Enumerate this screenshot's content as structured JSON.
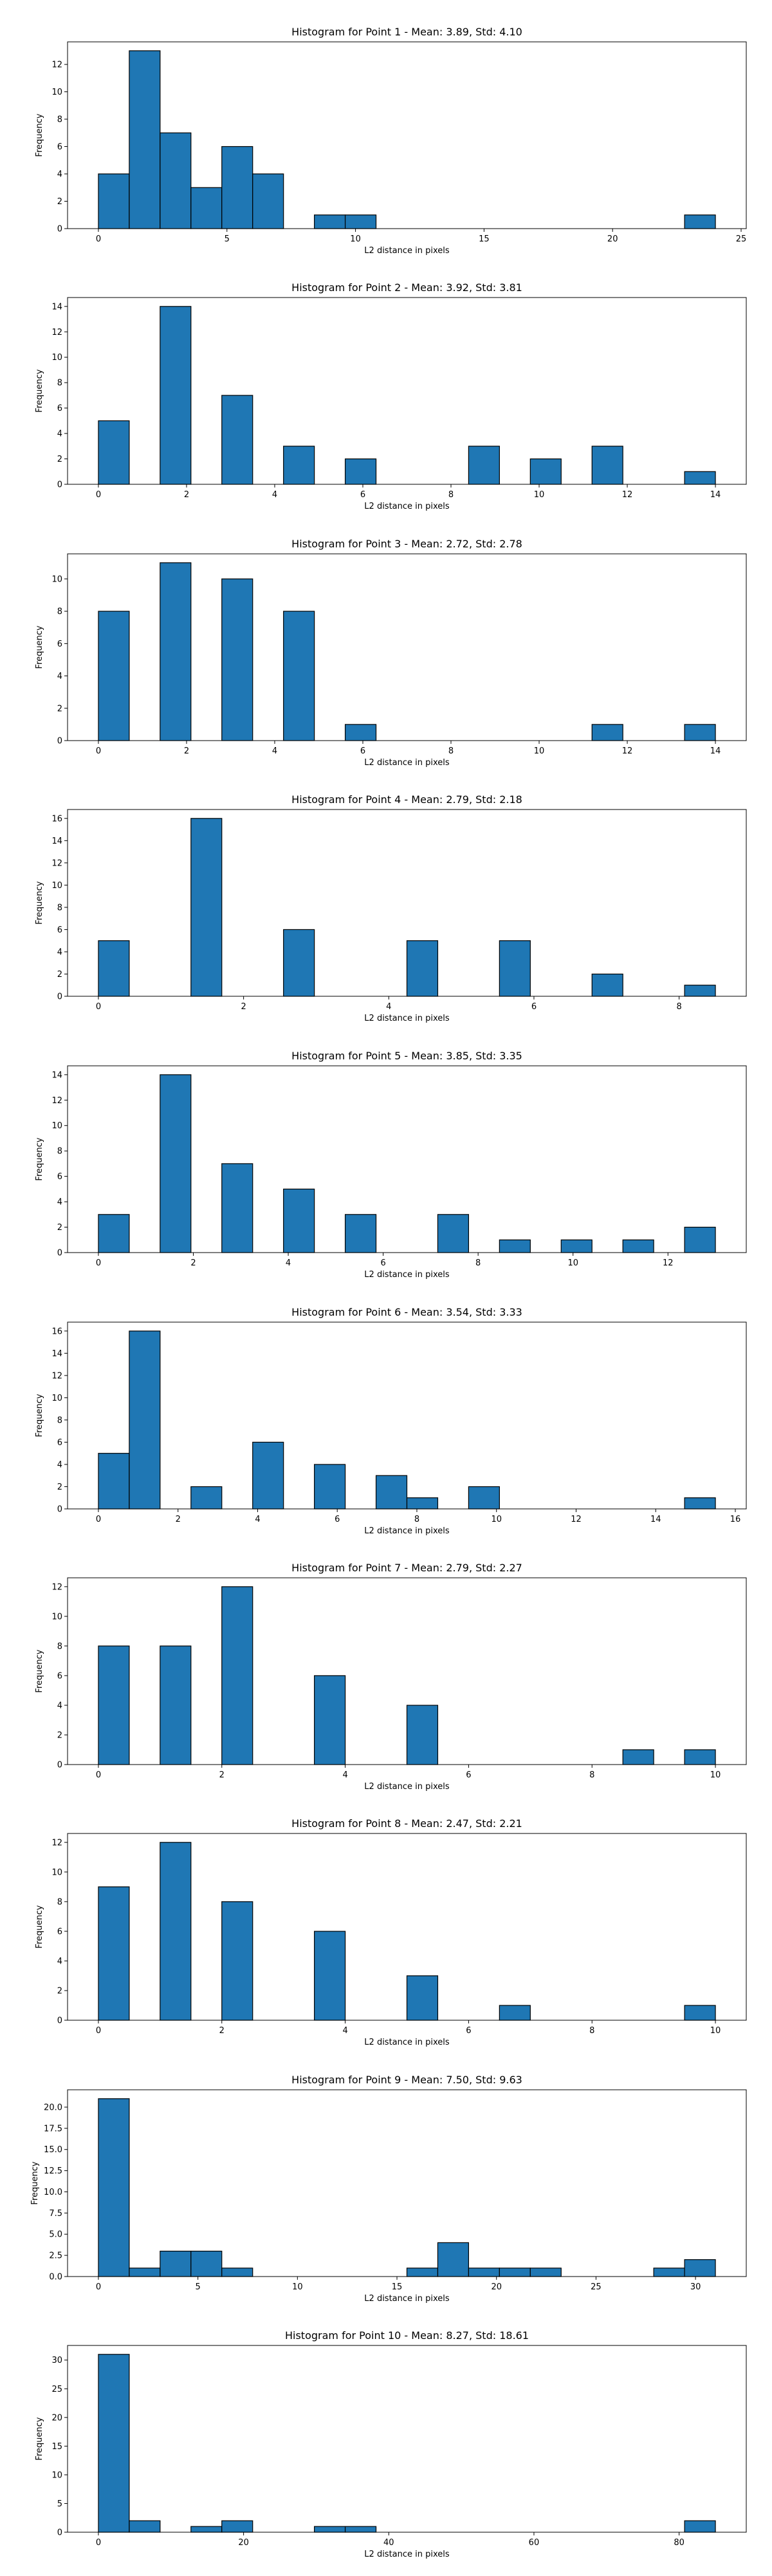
{
  "colors": {
    "bar_fill": "#1f77b4",
    "bar_edge": "#000000",
    "axes": "#000000",
    "background": "#ffffff"
  },
  "chart_data": [
    {
      "type": "bar",
      "title": "Histogram for Point 1 - Mean: 3.89, Std: 4.10",
      "xlabel": "L2 distance in pixels",
      "ylabel": "Frequency",
      "xlim": [
        -1.2,
        25.2
      ],
      "ylim": [
        0,
        13.65
      ],
      "xticks": [
        0,
        5,
        10,
        15,
        20,
        25
      ],
      "yticks": [
        0,
        2,
        4,
        6,
        8,
        10,
        12
      ],
      "bins": [
        [
          0.0,
          1.2,
          4
        ],
        [
          1.2,
          2.4,
          13
        ],
        [
          2.4,
          3.6,
          7
        ],
        [
          3.6,
          4.8,
          3
        ],
        [
          4.8,
          6.0,
          6
        ],
        [
          6.0,
          7.2,
          4
        ],
        [
          8.4,
          9.6,
          1
        ],
        [
          9.6,
          10.8,
          1
        ],
        [
          22.8,
          24.0,
          1
        ]
      ]
    },
    {
      "type": "bar",
      "title": "Histogram for Point 2 - Mean: 3.92, Std: 3.81",
      "xlabel": "L2 distance in pixels",
      "ylabel": "Frequency",
      "xlim": [
        -0.7,
        14.7
      ],
      "ylim": [
        0,
        14.7
      ],
      "xticks": [
        0,
        2,
        4,
        6,
        8,
        10,
        12,
        14
      ],
      "yticks": [
        0,
        2,
        4,
        6,
        8,
        10,
        12,
        14
      ],
      "bins": [
        [
          0.0,
          0.7,
          5
        ],
        [
          1.4,
          2.1,
          14
        ],
        [
          2.8,
          3.5,
          7
        ],
        [
          4.2,
          4.9,
          3
        ],
        [
          5.6,
          6.3,
          2
        ],
        [
          8.4,
          9.1,
          3
        ],
        [
          9.8,
          10.5,
          2
        ],
        [
          11.2,
          11.9,
          3
        ],
        [
          13.3,
          14.0,
          1
        ]
      ]
    },
    {
      "type": "bar",
      "title": "Histogram for Point 3 - Mean: 2.72, Std: 2.78",
      "xlabel": "L2 distance in pixels",
      "ylabel": "Frequency",
      "xlim": [
        -0.7,
        14.7
      ],
      "ylim": [
        0,
        11.55
      ],
      "xticks": [
        0,
        2,
        4,
        6,
        8,
        10,
        12,
        14
      ],
      "yticks": [
        0,
        2,
        4,
        6,
        8,
        10
      ],
      "bins": [
        [
          0.0,
          0.7,
          8
        ],
        [
          1.4,
          2.1,
          11
        ],
        [
          2.8,
          3.5,
          10
        ],
        [
          4.2,
          4.9,
          8
        ],
        [
          5.6,
          6.3,
          1
        ],
        [
          11.2,
          11.9,
          1
        ],
        [
          13.3,
          14.0,
          1
        ]
      ]
    },
    {
      "type": "bar",
      "title": "Histogram for Point 4 - Mean: 2.79, Std: 2.18",
      "xlabel": "L2 distance in pixels",
      "ylabel": "Frequency",
      "xlim": [
        -0.425,
        8.925
      ],
      "ylim": [
        0,
        16.8
      ],
      "xticks": [
        0,
        2,
        4,
        6,
        8
      ],
      "yticks": [
        0,
        2,
        4,
        6,
        8,
        10,
        12,
        14,
        16
      ],
      "bins": [
        [
          0.0,
          0.425,
          5
        ],
        [
          1.275,
          1.7,
          16
        ],
        [
          2.55,
          2.975,
          6
        ],
        [
          4.25,
          4.675,
          5
        ],
        [
          5.525,
          5.95,
          5
        ],
        [
          6.8,
          7.225,
          2
        ],
        [
          8.075,
          8.5,
          1
        ]
      ]
    },
    {
      "type": "bar",
      "title": "Histogram for Point 5 - Mean: 3.85, Std: 3.35",
      "xlabel": "L2 distance in pixels",
      "ylabel": "Frequency",
      "xlim": [
        -0.65,
        13.65
      ],
      "ylim": [
        0,
        14.7
      ],
      "xticks": [
        0,
        2,
        4,
        6,
        8,
        10,
        12
      ],
      "yticks": [
        0,
        2,
        4,
        6,
        8,
        10,
        12,
        14
      ],
      "bins": [
        [
          0.0,
          0.65,
          3
        ],
        [
          1.3,
          1.95,
          14
        ],
        [
          2.6,
          3.25,
          7
        ],
        [
          3.9,
          4.55,
          5
        ],
        [
          5.2,
          5.85,
          3
        ],
        [
          7.15,
          7.8,
          3
        ],
        [
          8.45,
          9.1,
          1
        ],
        [
          9.75,
          10.4,
          1
        ],
        [
          11.05,
          11.7,
          1
        ],
        [
          12.35,
          13.0,
          2
        ]
      ]
    },
    {
      "type": "bar",
      "title": "Histogram for Point 6 - Mean: 3.54, Std: 3.33",
      "xlabel": "L2 distance in pixels",
      "ylabel": "Frequency",
      "xlim": [
        -0.775,
        16.275
      ],
      "ylim": [
        0,
        16.8
      ],
      "xticks": [
        0,
        2,
        4,
        6,
        8,
        10,
        12,
        14,
        16
      ],
      "yticks": [
        0,
        2,
        4,
        6,
        8,
        10,
        12,
        14,
        16
      ],
      "bins": [
        [
          0.0,
          0.775,
          5
        ],
        [
          0.775,
          1.55,
          16
        ],
        [
          2.325,
          3.1,
          2
        ],
        [
          3.875,
          4.65,
          6
        ],
        [
          5.425,
          6.2,
          4
        ],
        [
          6.975,
          7.75,
          3
        ],
        [
          7.75,
          8.525,
          1
        ],
        [
          9.3,
          10.075,
          2
        ],
        [
          14.725,
          15.5,
          1
        ]
      ]
    },
    {
      "type": "bar",
      "title": "Histogram for Point 7 - Mean: 2.79, Std: 2.27",
      "xlabel": "L2 distance in pixels",
      "ylabel": "Frequency",
      "xlim": [
        -0.5,
        10.5
      ],
      "ylim": [
        0,
        12.6
      ],
      "xticks": [
        0,
        2,
        4,
        6,
        8,
        10
      ],
      "yticks": [
        0,
        2,
        4,
        6,
        8,
        10,
        12
      ],
      "bins": [
        [
          0.0,
          0.5,
          8
        ],
        [
          1.0,
          1.5,
          8
        ],
        [
          2.0,
          2.5,
          12
        ],
        [
          3.5,
          4.0,
          6
        ],
        [
          5.0,
          5.5,
          4
        ],
        [
          8.5,
          9.0,
          1
        ],
        [
          9.5,
          10.0,
          1
        ]
      ]
    },
    {
      "type": "bar",
      "title": "Histogram for Point 8 - Mean: 2.47, Std: 2.21",
      "xlabel": "L2 distance in pixels",
      "ylabel": "Frequency",
      "xlim": [
        -0.5,
        10.5
      ],
      "ylim": [
        0,
        12.6
      ],
      "xticks": [
        0,
        2,
        4,
        6,
        8,
        10
      ],
      "yticks": [
        0,
        2,
        4,
        6,
        8,
        10,
        12
      ],
      "bins": [
        [
          0.0,
          0.5,
          9
        ],
        [
          1.0,
          1.5,
          12
        ],
        [
          2.0,
          2.5,
          8
        ],
        [
          3.5,
          4.0,
          6
        ],
        [
          5.0,
          5.5,
          3
        ],
        [
          6.5,
          7.0,
          1
        ],
        [
          9.5,
          10.0,
          1
        ]
      ]
    },
    {
      "type": "bar",
      "title": "Histogram for Point 9 - Mean: 7.50, Std: 9.63",
      "xlabel": "L2 distance in pixels",
      "ylabel": "Frequency",
      "xlim": [
        -1.55,
        32.55
      ],
      "ylim": [
        0,
        22.05
      ],
      "xticks": [
        0,
        5,
        10,
        15,
        20,
        25,
        30
      ],
      "yticks": [
        0.0,
        2.5,
        5.0,
        7.5,
        10.0,
        12.5,
        15.0,
        17.5,
        20.0
      ],
      "yticklabels": [
        "0.0",
        "2.5",
        "5.0",
        "7.5",
        "10.0",
        "12.5",
        "15.0",
        "17.5",
        "20.0"
      ],
      "bins": [
        [
          0.0,
          1.55,
          21
        ],
        [
          1.55,
          3.1,
          1
        ],
        [
          3.1,
          4.65,
          3
        ],
        [
          4.65,
          6.2,
          3
        ],
        [
          6.2,
          7.75,
          1
        ],
        [
          15.5,
          17.05,
          1
        ],
        [
          17.05,
          18.6,
          4
        ],
        [
          18.6,
          20.15,
          1
        ],
        [
          20.15,
          21.7,
          1
        ],
        [
          21.7,
          23.25,
          1
        ],
        [
          27.9,
          29.45,
          1
        ],
        [
          29.45,
          31.0,
          2
        ]
      ]
    },
    {
      "type": "bar",
      "title": "Histogram for Point 10 - Mean: 8.27, Std: 18.61",
      "xlabel": "L2 distance in pixels",
      "ylabel": "Frequency",
      "xlim": [
        -4.25,
        89.25
      ],
      "ylim": [
        0,
        32.55
      ],
      "xticks": [
        0,
        20,
        40,
        60,
        80
      ],
      "yticks": [
        0,
        5,
        10,
        15,
        20,
        25,
        30
      ],
      "bins": [
        [
          0.0,
          4.25,
          31
        ],
        [
          4.25,
          8.5,
          2
        ],
        [
          12.75,
          17.0,
          1
        ],
        [
          17.0,
          21.25,
          2
        ],
        [
          29.75,
          34.0,
          1
        ],
        [
          34.0,
          38.25,
          1
        ],
        [
          80.75,
          85.0,
          2
        ]
      ]
    }
  ]
}
